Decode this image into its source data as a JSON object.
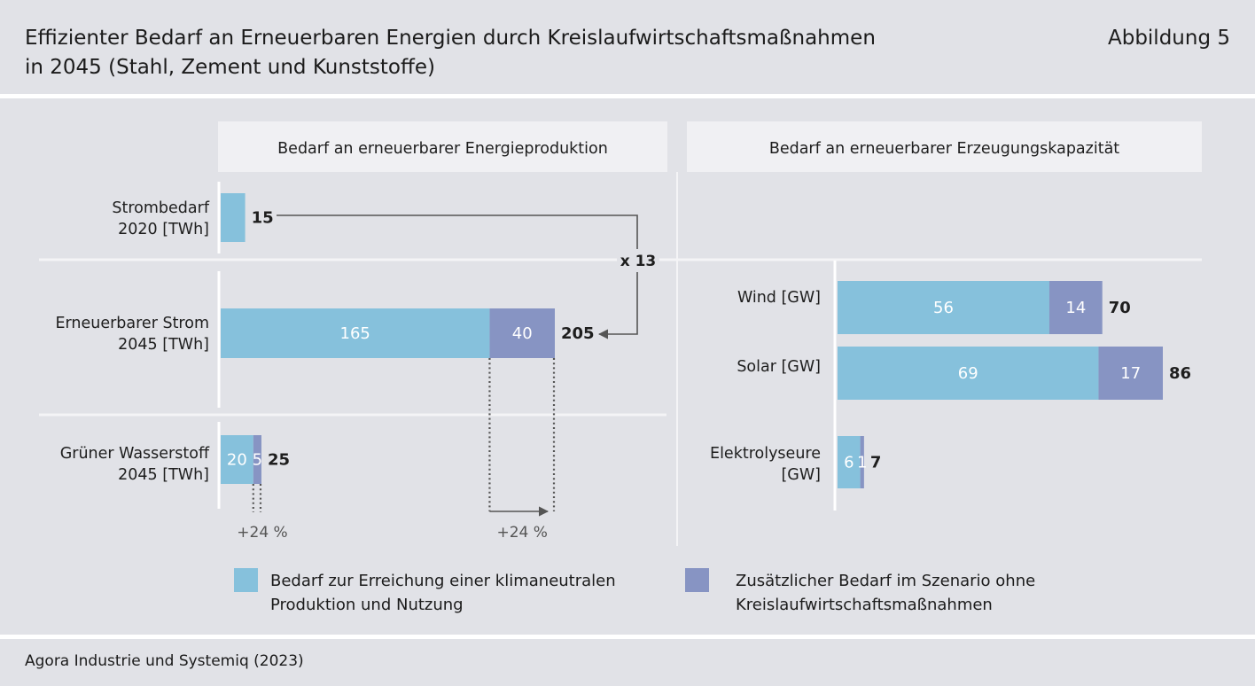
{
  "header": {
    "title_line1": "Effizienter Bedarf an Erneuerbaren Energien durch Kreislaufwirtschaftsmaßnahmen",
    "title_line2": "in 2045 (Stahl, Zement und Kunststoffe)",
    "figure_label": "Abbildung 5"
  },
  "source": "Agora Industrie und Systemiq (2023)",
  "colors": {
    "base": "#86c1dc",
    "extra": "#8794c3",
    "panel": "#f0f0f3",
    "divider": "#f4f4f6"
  },
  "chart_data": [
    {
      "type": "bar",
      "title": "Bedarf an erneuerbarer Energieproduktion",
      "categories": [
        [
          "Strombedarf",
          "2020 [TWh]"
        ],
        [
          "Erneuerbarer Strom",
          "2045 [TWh]"
        ],
        [
          "Grüner Wasserstoff",
          "2045 [TWh]"
        ]
      ],
      "series": [
        {
          "name": "Bedarf zur Erreichung einer klimaneutralen Produktion und Nutzung",
          "values": [
            15,
            165,
            20
          ]
        },
        {
          "name": "Zusätzlicher Bedarf im Szenario ohne Kreislaufwirtschaftsmaßnahmen",
          "values": [
            0,
            40,
            5
          ]
        }
      ],
      "totals": [
        15,
        205,
        25
      ],
      "segment_labels": [
        [
          "",
          ""
        ],
        [
          "165",
          "40"
        ],
        [
          "20",
          "5"
        ]
      ],
      "total_labels": [
        "15",
        "205",
        "25"
      ],
      "annotations": {
        "multiplier": "x 13",
        "increase_strom": "+24 %",
        "increase_h2": "+24 %"
      }
    },
    {
      "type": "bar",
      "title": "Bedarf an erneuerbarer Erzeugungskapazität",
      "categories": [
        [
          "Wind [GW]"
        ],
        [
          "Solar [GW]"
        ],
        [
          "Elektrolyseure",
          "[GW]"
        ]
      ],
      "series": [
        {
          "name": "Bedarf zur Erreichung einer klimaneutralen Produktion und Nutzung",
          "values": [
            56,
            69,
            6
          ]
        },
        {
          "name": "Zusätzlicher Bedarf im Szenario ohne Kreislaufwirtschaftsmaßnahmen",
          "values": [
            14,
            17,
            1
          ]
        }
      ],
      "totals": [
        70,
        86,
        7
      ],
      "segment_labels": [
        [
          "56",
          "14"
        ],
        [
          "69",
          "17"
        ],
        [
          "6",
          "1"
        ]
      ],
      "total_labels": [
        "70",
        "86",
        "7"
      ]
    }
  ],
  "legend": [
    {
      "line1": "Bedarf zur Erreichung einer klimaneutralen",
      "line2": "Produktion und Nutzung"
    },
    {
      "line1": "Zusätzlicher Bedarf im Szenario ohne",
      "line2": "Kreislaufwirtschaftsmaßnahmen"
    }
  ]
}
